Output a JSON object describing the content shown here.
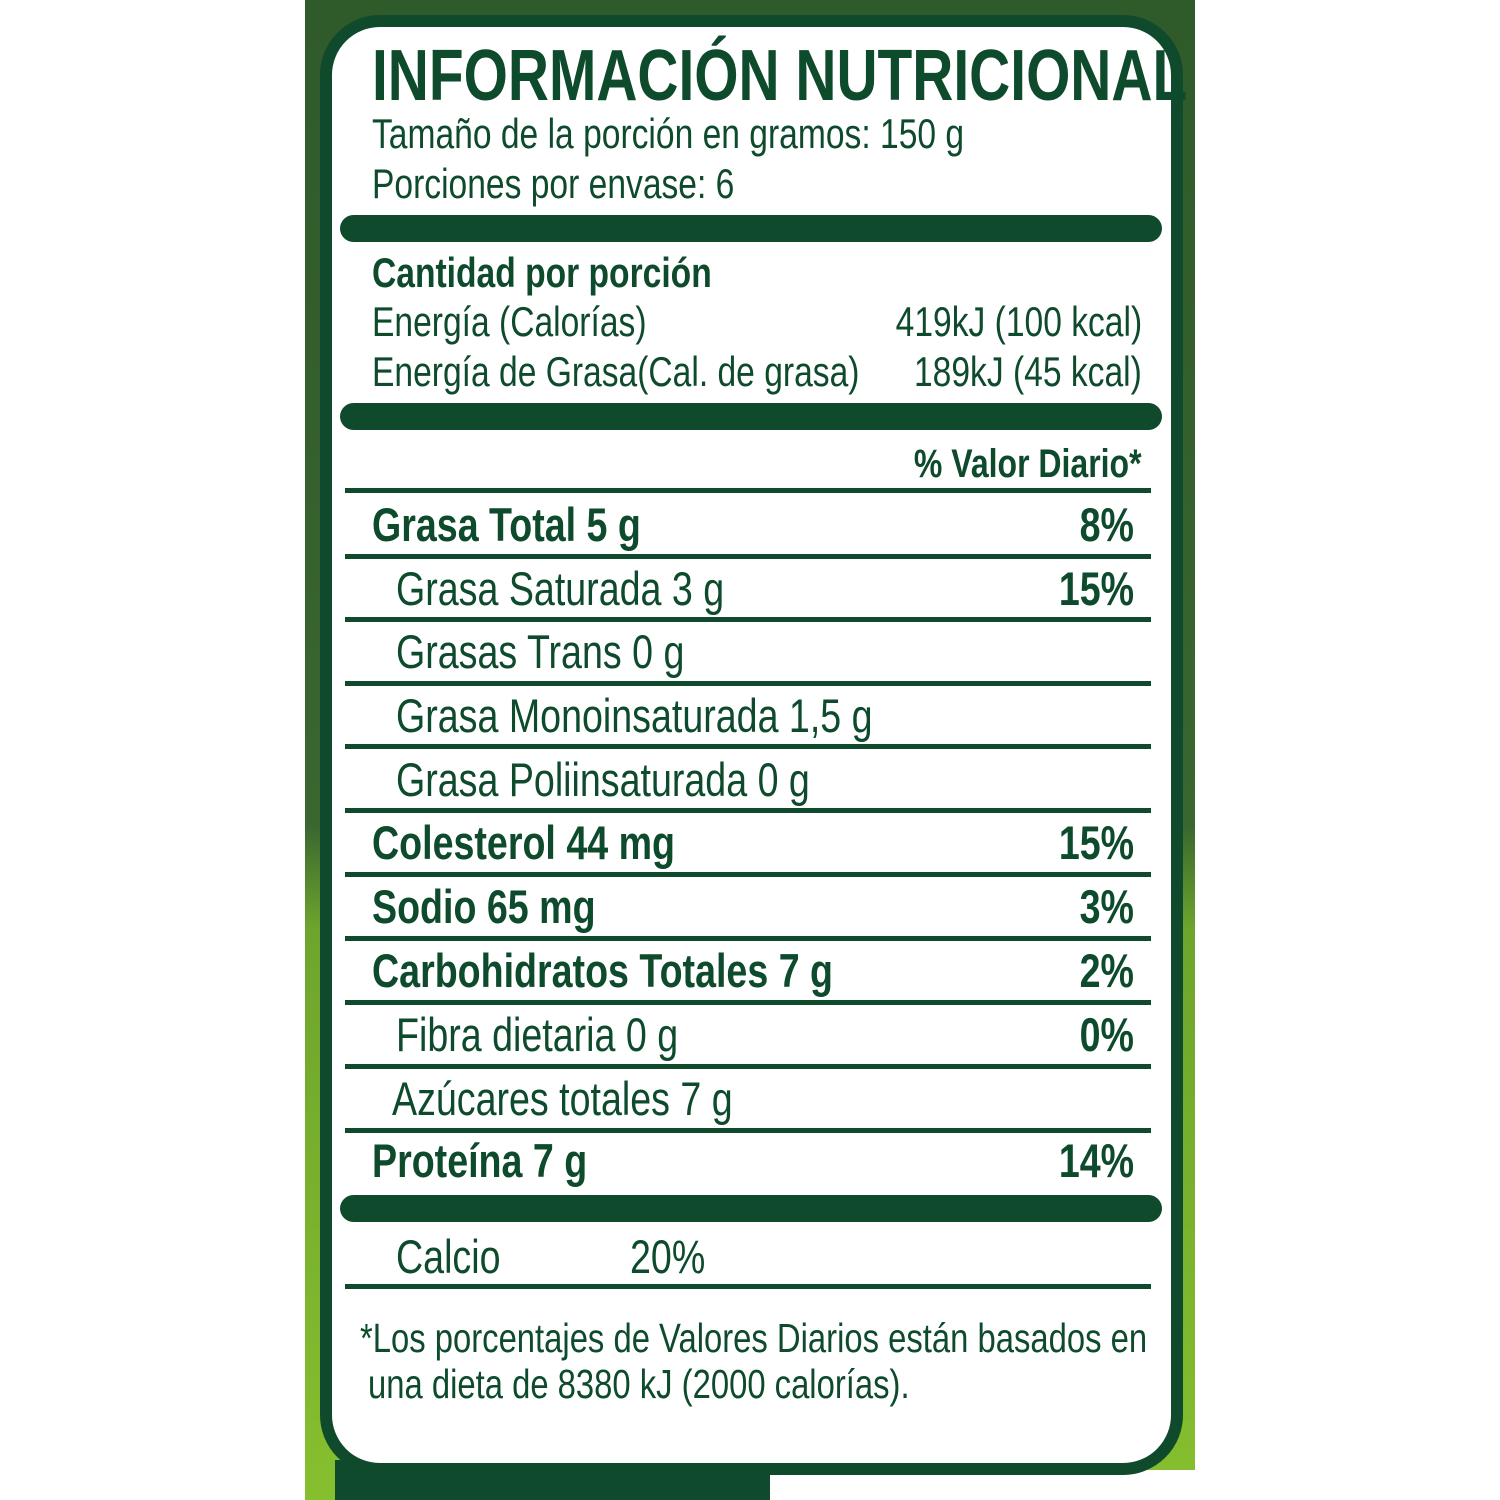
{
  "title": "INFORMACIÓN NUTRICIONAL",
  "serving_size": "Tamaño de la porción en gramos: 150 g",
  "servings_per_container": "Porciones por envase: 6",
  "amount_per_serving": "Cantidad por porción",
  "energy": {
    "label": "Energía (Calorías)",
    "value": "419kJ (100 kcal)"
  },
  "fat_energy": {
    "label": "Energía de Grasa(Cal. de grasa)",
    "value": "189kJ (45 kcal)"
  },
  "daily_value_header": "% Valor Diario*",
  "nutrients": [
    {
      "label": "Grasa Total 5 g",
      "dv": "8%",
      "bold": true
    },
    {
      "label": "Grasa Saturada 3 g",
      "dv": "15%",
      "bold": false
    },
    {
      "label": "Grasas Trans 0 g",
      "dv": "",
      "bold": false
    },
    {
      "label": "Grasa Monoinsaturada 1,5 g",
      "dv": "",
      "bold": false
    },
    {
      "label": "Grasa Poliinsaturada 0 g",
      "dv": "",
      "bold": false
    },
    {
      "label": "Colesterol  44 mg",
      "dv": "15%",
      "bold": true
    },
    {
      "label": "Sodio 65 mg",
      "dv": "3%",
      "bold": true
    },
    {
      "label": "Carbohidratos Totales 7 g",
      "dv": "2%",
      "bold": true
    },
    {
      "label": "Fibra dietaria 0 g",
      "dv": "0%",
      "bold": false
    },
    {
      "label": "Azúcares totales 7 g",
      "dv": "",
      "bold": false
    },
    {
      "label": "Proteína 7 g",
      "dv": "14%",
      "bold": true
    }
  ],
  "calcium": {
    "label": "Calcio",
    "value": "20%"
  },
  "footnote": [
    "*Los porcentajes de Valores Diarios están basados en",
    "una dieta de 8380 kJ (2000 calorías)."
  ],
  "colors": {
    "dark_green": "#0f4a2c",
    "light_green": "#86bf2e"
  }
}
